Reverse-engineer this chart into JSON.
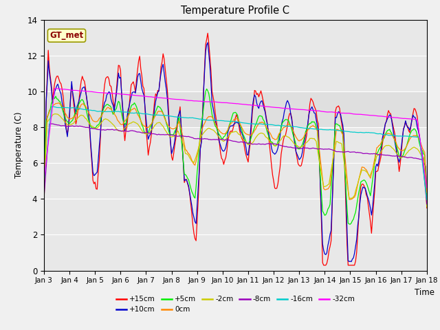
{
  "title": "Temperature Profile C",
  "xlabel": "Time",
  "ylabel": "Temperature (C)",
  "ylim": [
    0,
    14
  ],
  "annotation": "GT_met",
  "xtick_labels": [
    "Jan 3",
    "Jan 4",
    "Jan 5",
    "Jan 6",
    "Jan 7",
    "Jan 8",
    "Jan 9",
    "Jan 10",
    "Jan 11",
    "Jan 12",
    "Jan 13",
    "Jan 14",
    "Jan 15",
    "Jan 16",
    "Jan 17",
    "Jan 18"
  ],
  "xtick_positions": [
    0,
    24,
    48,
    72,
    96,
    120,
    144,
    168,
    192,
    216,
    240,
    264,
    288,
    312,
    336,
    360
  ],
  "ytick_positions": [
    0,
    2,
    4,
    6,
    8,
    10,
    12,
    14
  ],
  "colors": {
    "+15cm": "#ff0000",
    "+10cm": "#0000cc",
    "+5cm": "#00ee00",
    "0cm": "#ff8800",
    "-2cm": "#cccc00",
    "-8cm": "#9900bb",
    "-16cm": "#00cccc",
    "-32cm": "#ff00ff"
  },
  "legend_order": [
    "+15cm",
    "+10cm",
    "+5cm",
    "0cm",
    "-2cm",
    "-8cm",
    "-16cm",
    "-32cm"
  ]
}
